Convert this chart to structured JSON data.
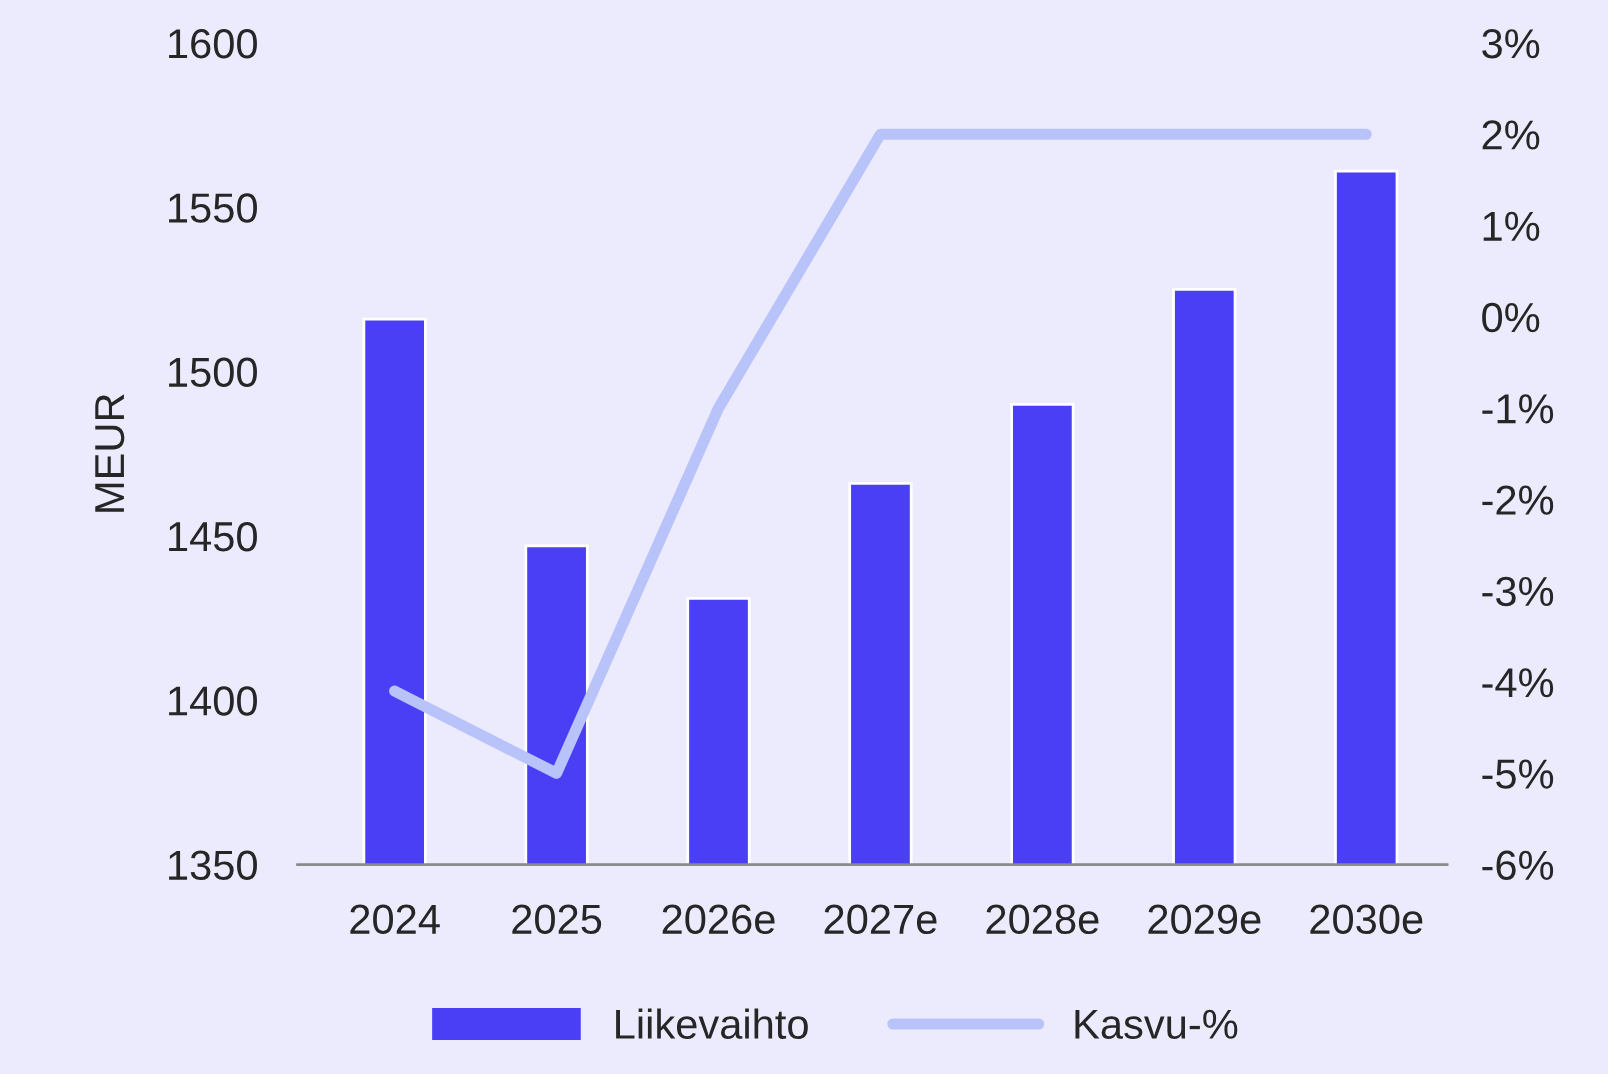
{
  "chart_data": {
    "type": "bar",
    "ylabel": "MEUR",
    "categories": [
      "2024",
      "2025",
      "2026e",
      "2027e",
      "2028e",
      "2029e",
      "2030e"
    ],
    "series": [
      {
        "name": "Liikevaihto",
        "color": "#4b3ff6",
        "values": [
          1516,
          1447,
          1431,
          1466,
          1490,
          1525,
          1561
        ]
      },
      {
        "name": "Kasvu-%",
        "type": "line",
        "axis": "y2",
        "color": "#b8c3fa",
        "values": [
          -4.1,
          -5,
          -1,
          2,
          2,
          2,
          2
        ]
      }
    ],
    "ylim": [
      1350,
      1600
    ],
    "yticks": [
      1350,
      1400,
      1450,
      1500,
      1550,
      1600
    ],
    "y2lim": [
      -6,
      3
    ],
    "y2ticks": [
      {
        "value": -6,
        "label": "-6%"
      },
      {
        "value": -5,
        "label": "-5%"
      },
      {
        "value": -4,
        "label": "-4%"
      },
      {
        "value": -3,
        "label": "-3%"
      },
      {
        "value": -2,
        "label": "-2%"
      },
      {
        "value": -1,
        "label": "-1%"
      },
      {
        "value": 0,
        "label": "0%"
      },
      {
        "value": 1,
        "label": "1%"
      },
      {
        "value": 2,
        "label": "2%"
      },
      {
        "value": 3,
        "label": "3%"
      }
    ],
    "grid": false,
    "legend": "bottom"
  }
}
